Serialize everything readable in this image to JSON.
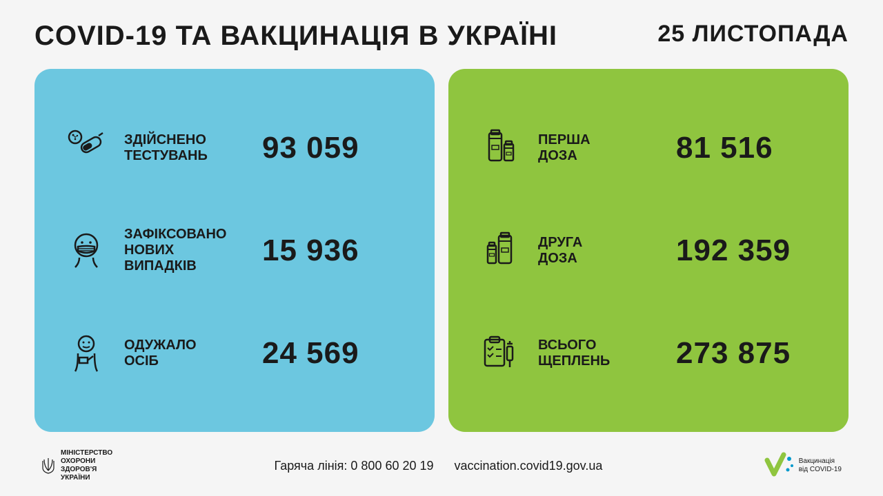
{
  "header": {
    "title": "COVID-19 ТА ВАКЦИНАЦІЯ В УКРАЇНІ",
    "date": "25 ЛИСТОПАДА"
  },
  "panels": {
    "blue": {
      "background": "#6cc7e0",
      "rows": [
        {
          "icon": "test-tube",
          "label": "ЗДІЙСНЕНО\nТЕСТУВАНЬ",
          "value": "93 059"
        },
        {
          "icon": "mask-person",
          "label": "ЗАФІКСОВАНО\nНОВИХ\nВИПАДКІВ",
          "value": "15 936"
        },
        {
          "icon": "recovered-person",
          "label": "ОДУЖАЛО\nОСІБ",
          "value": "24 569"
        }
      ]
    },
    "green": {
      "background": "#8fc53f",
      "rows": [
        {
          "icon": "vials-large",
          "label": "ПЕРША\nДОЗА",
          "value": "81 516"
        },
        {
          "icon": "vials-small",
          "label": "ДРУГА\nДОЗА",
          "value": "192 359"
        },
        {
          "icon": "clipboard-syringe",
          "label": "ВСЬОГО\nЩЕПЛЕНЬ",
          "value": "273 875"
        }
      ]
    }
  },
  "footer": {
    "ministry": "МІНІСТЕРСТВО\nОХОРОНИ\nЗДОРОВ'Я\nУКРАЇНИ",
    "hotline_label": "Гаряча лінія:",
    "hotline_number": "0 800 60 20 19",
    "website": "vaccination.covid19.gov.ua",
    "vacc_logo": "Вакцинація\nвід COVID-19"
  },
  "colors": {
    "text": "#1a1a1a",
    "bg": "#f5f5f5",
    "blue": "#6cc7e0",
    "green": "#8fc53f",
    "accent_green": "#8fc53f",
    "accent_blue": "#0099cc"
  }
}
